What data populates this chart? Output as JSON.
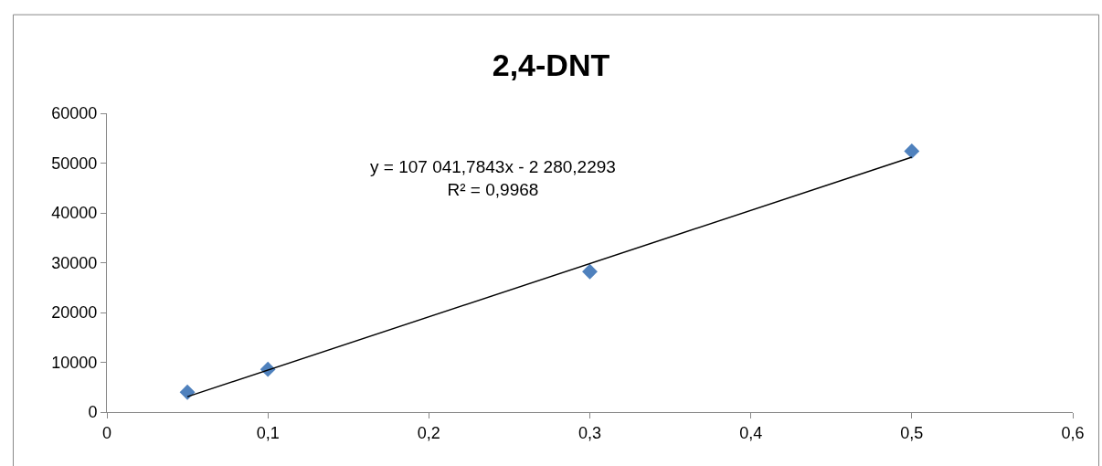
{
  "chart_data": {
    "type": "scatter",
    "title": "2,4-DNT",
    "series": [
      {
        "color": "#4f81bd",
        "x": [
          0.05,
          0.1,
          0.3,
          0.5
        ],
        "values": [
          4000,
          8600,
          28200,
          52400
        ],
        "marker": "diamond"
      },
      {
        "type": "line",
        "color": "#000000",
        "x": [
          0.05,
          0.5
        ],
        "values": [
          3100,
          51200
        ],
        "marker": "none",
        "line_style": "solid"
      }
    ],
    "xlim": [
      0,
      0.6
    ],
    "xticks": [
      0,
      {
        "value": 0.1,
        "label": "0,1"
      },
      {
        "value": 0.2,
        "label": "0,2"
      },
      {
        "value": 0.3,
        "label": "0,3"
      },
      {
        "value": 0.4,
        "label": "0,4"
      },
      {
        "value": 0.5,
        "label": "0,5"
      },
      {
        "value": 0.6,
        "label": "0,6"
      }
    ],
    "ylim": [
      0,
      60000
    ],
    "yticks": [
      0,
      10000,
      20000,
      30000,
      40000,
      50000,
      60000
    ],
    "grid": false,
    "annotations": [
      "y = 107 041,7843x - 2 280,2293\nR² = 0,9968"
    ]
  }
}
